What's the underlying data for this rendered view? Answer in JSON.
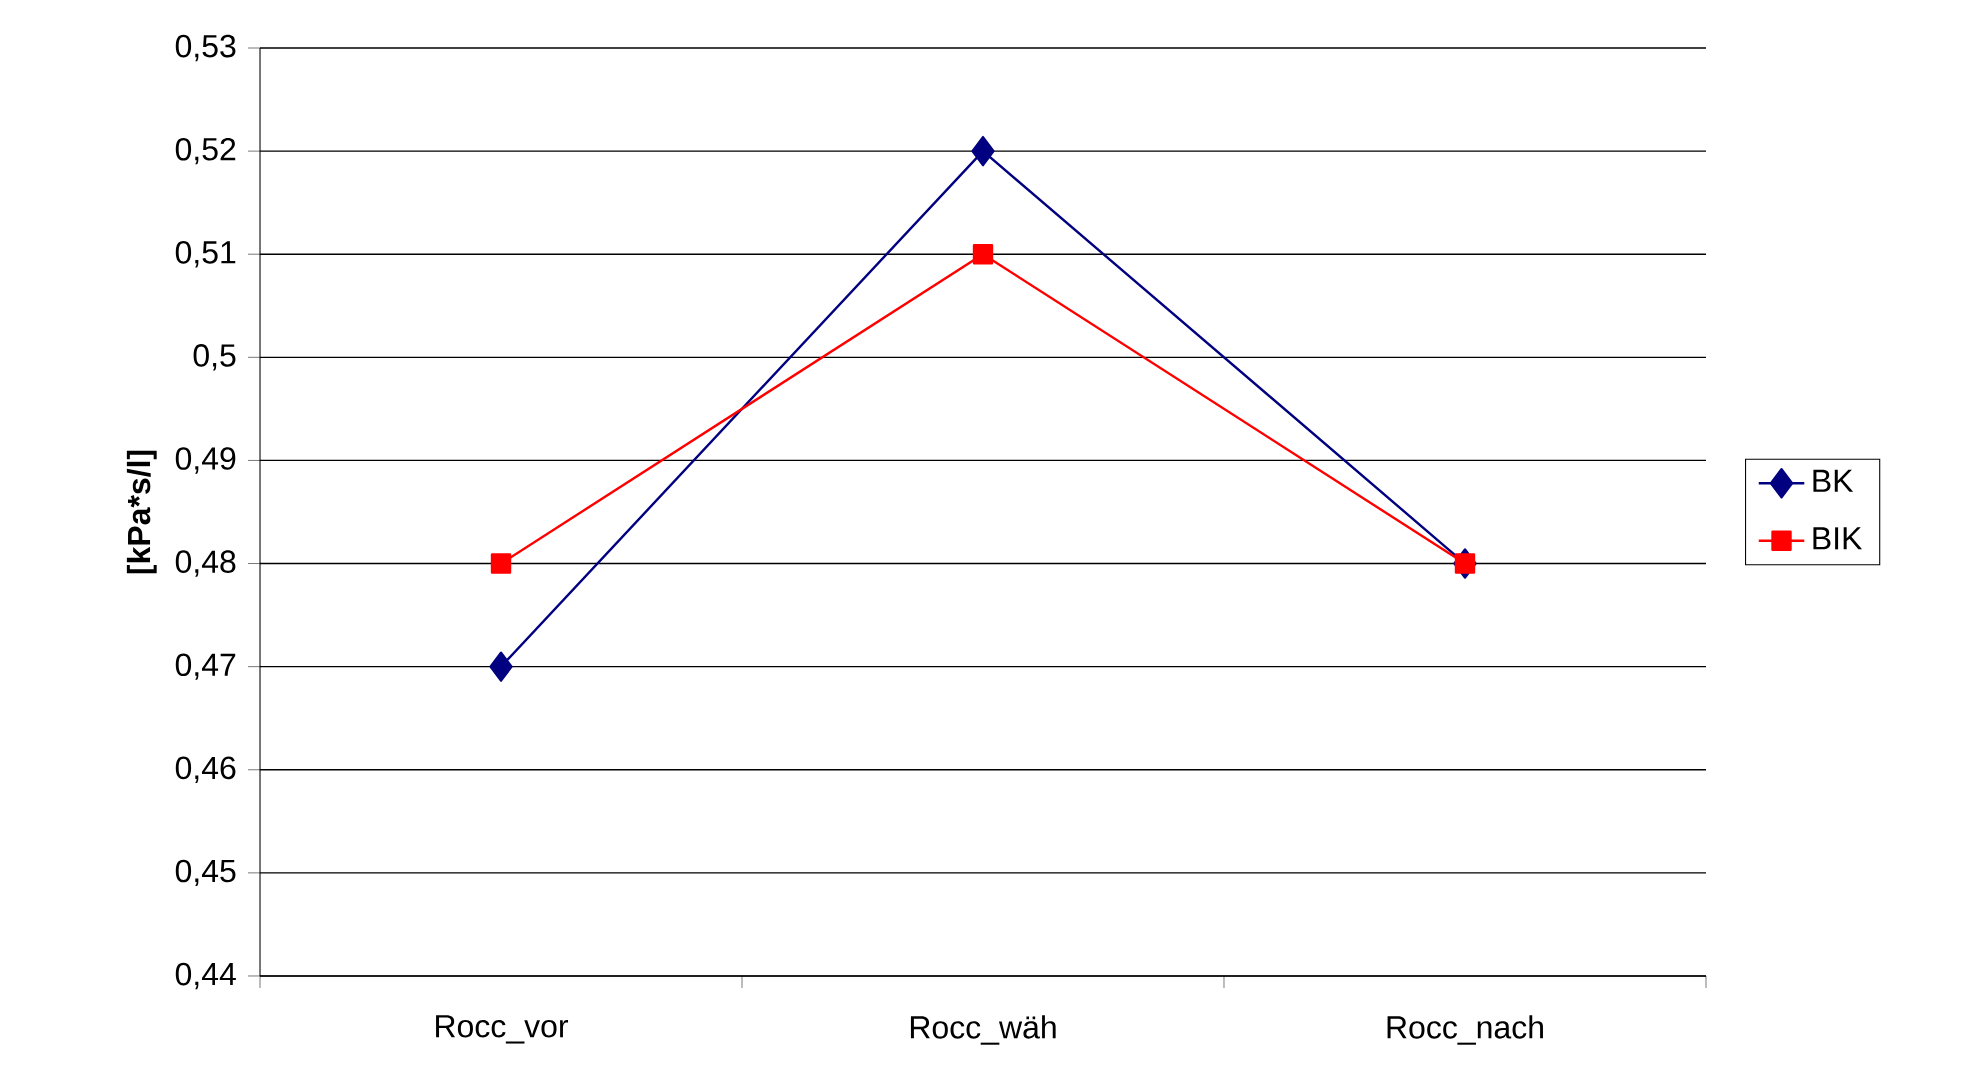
{
  "chart_data": {
    "type": "line",
    "ylabel": "[kPa*s/l]",
    "categories": [
      "Rocc_vor",
      "Rocc_wäh",
      "Rocc_nach"
    ],
    "series": [
      {
        "name": "BK",
        "color": "#000080",
        "marker": "diamond",
        "values": [
          0.47,
          0.52,
          0.48
        ]
      },
      {
        "name": "BIK",
        "color": "#ff0000",
        "marker": "square",
        "values": [
          0.48,
          0.51,
          0.48
        ]
      }
    ],
    "ylim": [
      0.44,
      0.53
    ],
    "yticks": [
      {
        "value": 0.44,
        "label": "0,44"
      },
      {
        "value": 0.45,
        "label": "0,45"
      },
      {
        "value": 0.46,
        "label": "0,46"
      },
      {
        "value": 0.47,
        "label": "0,47"
      },
      {
        "value": 0.48,
        "label": "0,48"
      },
      {
        "value": 0.49,
        "label": "0,49"
      },
      {
        "value": 0.5,
        "label": "0,5"
      },
      {
        "value": 0.51,
        "label": "0,51"
      },
      {
        "value": 0.52,
        "label": "0,52"
      },
      {
        "value": 0.53,
        "label": "0,53"
      }
    ],
    "grid": "y",
    "legend": "right",
    "line_style": "solid"
  }
}
